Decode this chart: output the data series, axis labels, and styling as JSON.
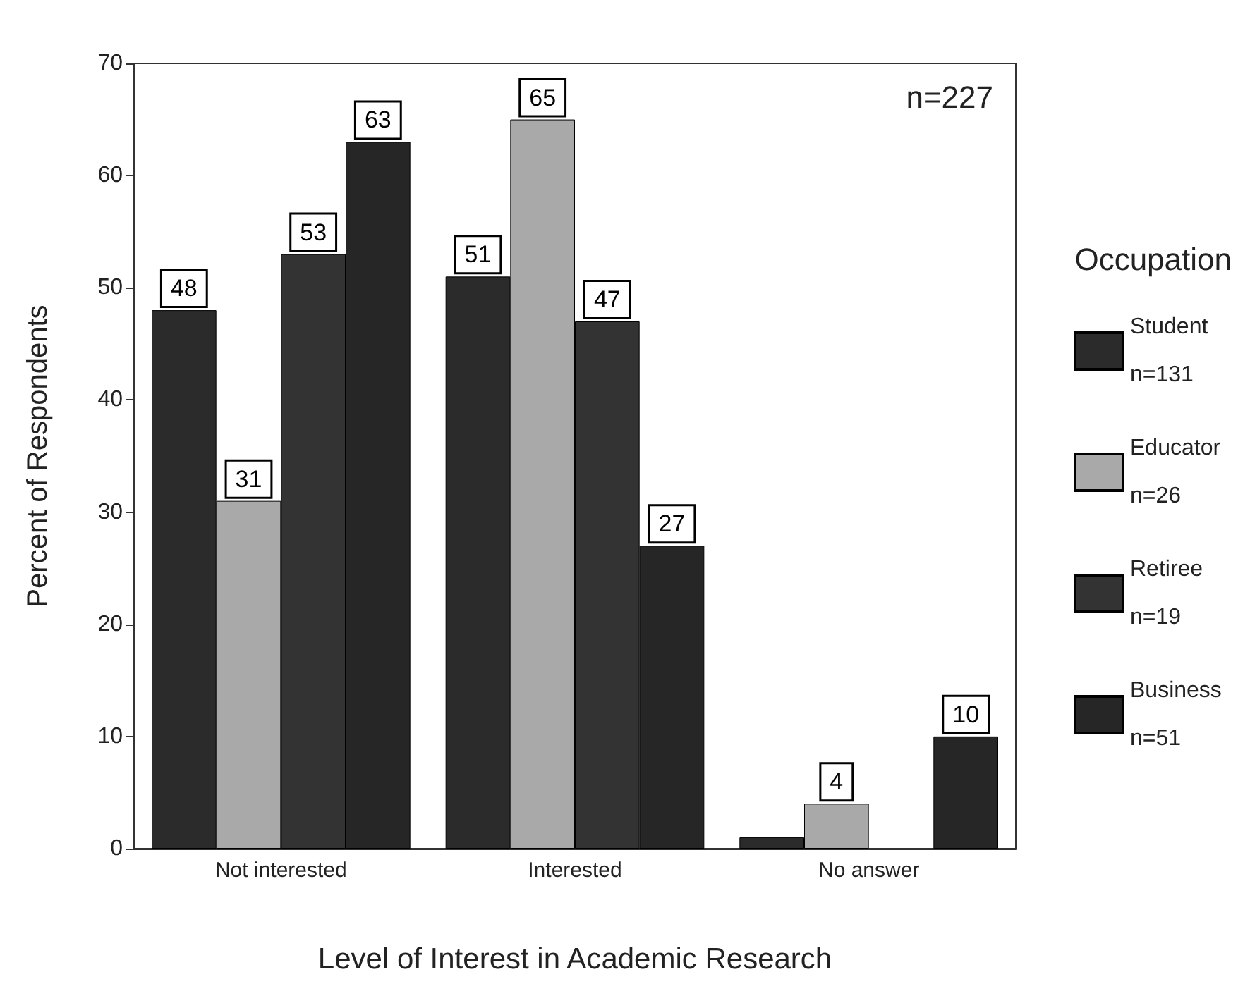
{
  "chart_data": {
    "type": "bar",
    "xlabel": "Level of Interest in Academic Research",
    "ylabel": "Percent of Respondents",
    "legend_title": "Occupation",
    "annotations": [
      "n=227"
    ],
    "categories": [
      "Not interested",
      "Interested",
      "No answer"
    ],
    "series": [
      {
        "name": "Student n=131",
        "color": "#2b2b2b",
        "values": [
          48,
          51,
          1
        ],
        "value_labels": [
          "48",
          "51",
          null
        ]
      },
      {
        "name": "Educator n=26",
        "color": "#a9a9a9",
        "values": [
          31,
          65,
          4
        ],
        "value_labels": [
          "31",
          "65",
          "4"
        ]
      },
      {
        "name": "Retiree n=19",
        "color": "#333333",
        "values": [
          53,
          47,
          null
        ],
        "value_labels": [
          "53",
          "47",
          null
        ]
      },
      {
        "name": "Business n=51",
        "color": "#262626",
        "values": [
          63,
          27,
          10
        ],
        "value_labels": [
          "63",
          "27",
          "10"
        ]
      }
    ],
    "ylim": [
      0,
      70
    ],
    "yticks": [
      0,
      10,
      20,
      30,
      40,
      50,
      60,
      70
    ],
    "grid": false,
    "legend": "right"
  }
}
